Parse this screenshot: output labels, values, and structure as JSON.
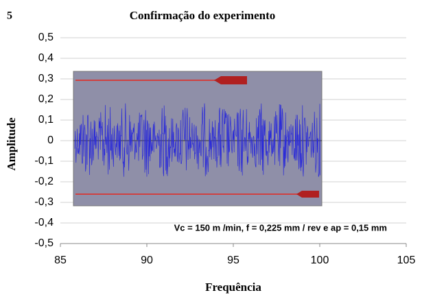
{
  "chart_data": {
    "type": "line",
    "figure_number": "5",
    "title": "Confirmação do experimento",
    "xlabel": "Frequência",
    "ylabel": "Amplitude",
    "annotation": "Vc = 150 m /min, f = 0,225 mm / rev e ap = 0,15 mm",
    "xlim": [
      85,
      105
    ],
    "xticks": [
      85,
      90,
      95,
      100,
      105
    ],
    "ylim": [
      -0.5,
      0.5
    ],
    "yticks": [
      {
        "value": 0.5,
        "label": "0,5"
      },
      {
        "value": 0.4,
        "label": "0,4"
      },
      {
        "value": 0.3,
        "label": "0,3"
      },
      {
        "value": 0.2,
        "label": "0,2"
      },
      {
        "value": 0.1,
        "label": "0,1"
      },
      0,
      {
        "value": -0.1,
        "label": "-0,1"
      },
      {
        "value": -0.2,
        "label": "-0,2"
      },
      {
        "value": -0.3,
        "label": "-0,3"
      },
      {
        "value": -0.4,
        "label": "-0,4"
      },
      {
        "value": -0.5,
        "label": "-0,5"
      }
    ],
    "grid": true
  }
}
